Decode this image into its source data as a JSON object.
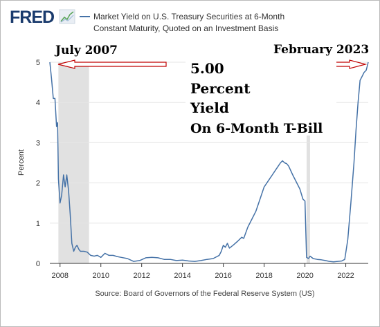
{
  "header": {
    "logo_text": "FRED",
    "legend_line1": "Market Yield on U.S. Treasury Securities at 6-Month",
    "legend_line2": "Constant Maturity, Quoted on an Investment Basis"
  },
  "annotations": {
    "left_label": "July 2007",
    "right_label": "February 2023",
    "big_text": [
      "5.00",
      "Percent",
      "Yield",
      "On 6-Month T-Bill"
    ]
  },
  "footer": {
    "source": "Source: Board of Governors of the Federal Reserve System (US)"
  },
  "colors": {
    "line": "#4572a7",
    "recession": "#e1e1e1",
    "arrow": "#c00000",
    "grid": "#e6e6e6"
  },
  "chart_data": {
    "type": "line",
    "title": "",
    "xlabel": "",
    "ylabel": "Percent",
    "xlim": [
      2007.5,
      2023.1
    ],
    "ylim": [
      0,
      5
    ],
    "x_ticks": [
      2008,
      2010,
      2012,
      2014,
      2016,
      2018,
      2020,
      2022
    ],
    "y_ticks": [
      0,
      1,
      2,
      3,
      4,
      5
    ],
    "grid": true,
    "recessions": [
      [
        2007.92,
        2009.42
      ],
      [
        2020.08,
        2020.25
      ]
    ],
    "series": [
      {
        "name": "Market Yield on U.S. Treasury Securities at 6-Month Constant Maturity, Quoted on an Investment Basis",
        "x": [
          2007.5,
          2007.58,
          2007.67,
          2007.75,
          2007.83,
          2007.88,
          2007.92,
          2008.0,
          2008.08,
          2008.17,
          2008.25,
          2008.33,
          2008.42,
          2008.5,
          2008.58,
          2008.67,
          2008.75,
          2008.83,
          2008.92,
          2009.0,
          2009.17,
          2009.33,
          2009.5,
          2009.67,
          2009.83,
          2010.0,
          2010.2,
          2010.4,
          2010.6,
          2010.8,
          2011.0,
          2011.3,
          2011.6,
          2011.9,
          2012.2,
          2012.5,
          2012.8,
          2013.1,
          2013.4,
          2013.7,
          2014.0,
          2014.3,
          2014.6,
          2014.9,
          2015.2,
          2015.5,
          2015.8,
          2015.9,
          2016.0,
          2016.1,
          2016.2,
          2016.3,
          2016.5,
          2016.7,
          2016.9,
          2017.0,
          2017.2,
          2017.4,
          2017.6,
          2017.8,
          2018.0,
          2018.2,
          2018.4,
          2018.6,
          2018.8,
          2018.9,
          2019.0,
          2019.1,
          2019.2,
          2019.4,
          2019.6,
          2019.75,
          2019.9,
          2020.0,
          2020.08,
          2020.17,
          2020.25,
          2020.4,
          2020.6,
          2020.8,
          2021.0,
          2021.2,
          2021.4,
          2021.6,
          2021.8,
          2021.95,
          2022.1,
          2022.25,
          2022.4,
          2022.5,
          2022.6,
          2022.7,
          2022.8,
          2022.9,
          2023.0,
          2023.1
        ],
        "values": [
          5.0,
          4.6,
          4.1,
          4.1,
          3.4,
          3.5,
          2.1,
          1.5,
          1.7,
          2.2,
          1.9,
          2.2,
          1.8,
          1.2,
          0.5,
          0.3,
          0.4,
          0.45,
          0.35,
          0.3,
          0.3,
          0.28,
          0.2,
          0.18,
          0.2,
          0.15,
          0.25,
          0.2,
          0.2,
          0.17,
          0.15,
          0.12,
          0.05,
          0.07,
          0.14,
          0.15,
          0.14,
          0.1,
          0.1,
          0.07,
          0.08,
          0.06,
          0.05,
          0.07,
          0.1,
          0.12,
          0.2,
          0.3,
          0.45,
          0.4,
          0.5,
          0.38,
          0.46,
          0.55,
          0.65,
          0.62,
          0.9,
          1.1,
          1.3,
          1.6,
          1.9,
          2.05,
          2.2,
          2.35,
          2.5,
          2.55,
          2.5,
          2.48,
          2.42,
          2.2,
          2.0,
          1.85,
          1.6,
          1.55,
          0.15,
          0.12,
          0.18,
          0.12,
          0.1,
          0.09,
          0.07,
          0.05,
          0.04,
          0.05,
          0.06,
          0.1,
          0.6,
          1.5,
          2.5,
          3.3,
          4.0,
          4.55,
          4.65,
          4.75,
          4.8,
          5.0
        ]
      }
    ]
  }
}
